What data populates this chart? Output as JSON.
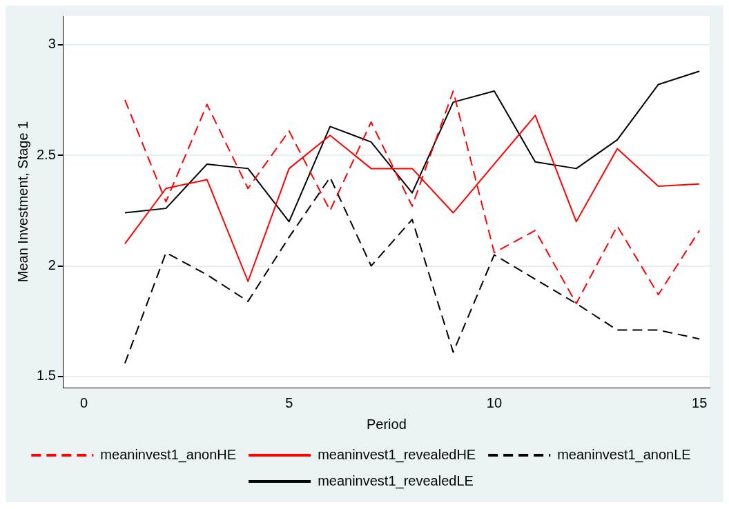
{
  "chart_data": {
    "type": "line",
    "xlabel": "Period",
    "ylabel": "Mean Investment, Stage 1",
    "x": [
      1,
      2,
      3,
      4,
      5,
      6,
      7,
      8,
      9,
      10,
      11,
      12,
      13,
      14,
      15
    ],
    "xlim": [
      -0.5,
      15.25
    ],
    "xticks": [
      0,
      5,
      10,
      15
    ],
    "ylim": [
      1.45,
      3.13
    ],
    "yticks": [
      1.5,
      2,
      2.5,
      3
    ],
    "grid": "y",
    "legend": "bottom",
    "marker": "none",
    "series": [
      {
        "name": "meaninvest1_anonHE",
        "color": "#ff0000",
        "line_style": "dashed",
        "values": [
          2.75,
          2.29,
          2.73,
          2.35,
          2.61,
          2.25,
          2.65,
          2.27,
          2.79,
          2.06,
          2.16,
          1.83,
          2.18,
          1.87,
          2.16
        ]
      },
      {
        "name": "meaninvest1_revealedHE",
        "color": "#ff0000",
        "line_style": "solid",
        "values": [
          2.1,
          2.35,
          2.39,
          1.93,
          2.44,
          2.59,
          2.44,
          2.44,
          2.24,
          2.46,
          2.68,
          2.2,
          2.53,
          2.36,
          2.37
        ]
      },
      {
        "name": "meaninvest1_anonLE",
        "color": "#000000",
        "line_style": "dashed",
        "values": [
          1.56,
          2.06,
          1.96,
          1.84,
          2.13,
          2.4,
          2.0,
          2.21,
          1.61,
          2.05,
          1.94,
          1.83,
          1.71,
          1.71,
          1.67
        ]
      },
      {
        "name": "meaninvest1_revealedLE",
        "color": "#000000",
        "line_style": "solid",
        "values": [
          2.24,
          2.26,
          2.46,
          2.44,
          2.2,
          2.63,
          2.56,
          2.33,
          2.74,
          2.79,
          2.47,
          2.44,
          2.57,
          2.82,
          2.88
        ]
      }
    ]
  }
}
